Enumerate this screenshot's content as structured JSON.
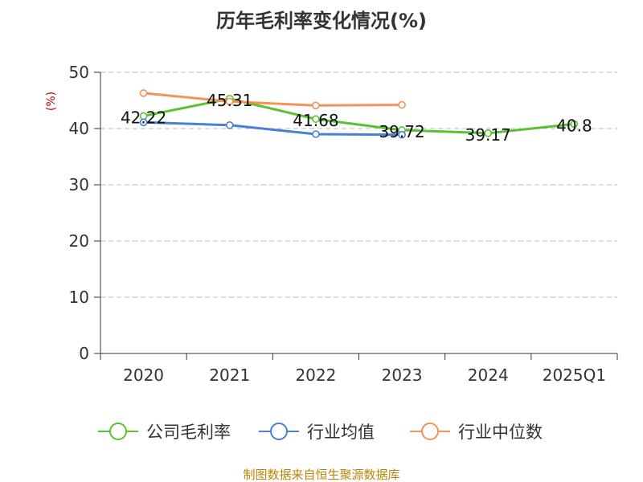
{
  "chart_data": {
    "type": "line",
    "title": "历年毛利率变化情况(%)",
    "ylabel": "(%)",
    "categories": [
      "2020",
      "2021",
      "2022",
      "2023",
      "2024",
      "2025Q1"
    ],
    "ylim": [
      0,
      50
    ],
    "yticks": [
      0,
      10,
      20,
      30,
      40,
      50
    ],
    "grid": true,
    "legend_position": "bottom",
    "series": [
      {
        "name": "公司毛利率",
        "color": "#5ac232",
        "values": [
          42.22,
          45.31,
          41.68,
          39.72,
          39.17,
          40.8
        ],
        "labels": [
          "42.22",
          "45.31",
          "41.68",
          "39.72",
          "39.17",
          "40.8"
        ]
      },
      {
        "name": "行业均值",
        "color": "#4a7fd8",
        "values": [
          41.1,
          40.6,
          39.0,
          38.9,
          null,
          null
        ]
      },
      {
        "name": "行业中位数",
        "color": "#f5925a",
        "values": [
          46.3,
          44.8,
          44.1,
          44.2,
          null,
          null
        ]
      }
    ],
    "source": "制图数据来自恒生聚源数据库"
  }
}
